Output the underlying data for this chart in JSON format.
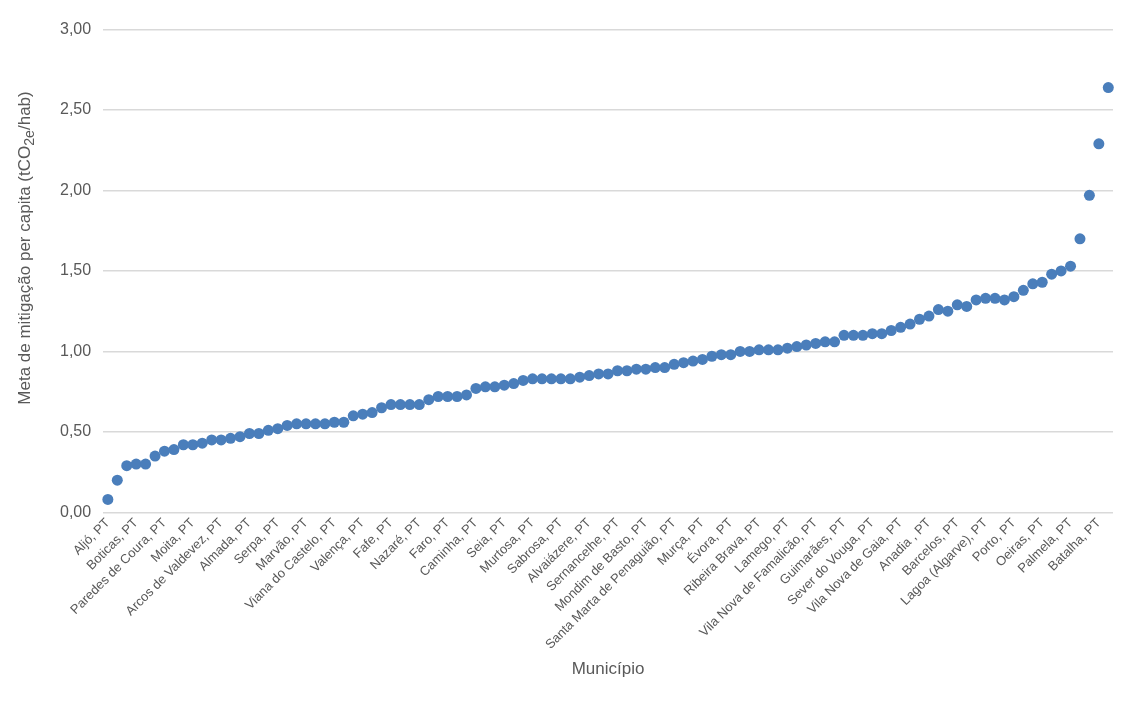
{
  "chart_data": {
    "type": "scatter",
    "xlabel": "Município",
    "ylabel": "Meta de mitigação per capita (tCO$_{2e}$/hab)",
    "categories": [
      "Aljó, PT",
      null,
      null,
      "Boticas, PT",
      null,
      null,
      "Paredes de Coura, PT",
      null,
      null,
      "Moita, PT",
      null,
      null,
      "Arcos de Valdevez, PT",
      null,
      null,
      "Almada, PT",
      null,
      null,
      "Serpa, PT",
      null,
      null,
      "Marvão, PT",
      null,
      null,
      "Viana do Castelo, PT",
      null,
      null,
      "Valença, PT",
      null,
      null,
      "Fafe, PT",
      null,
      null,
      "Nazaré, PT",
      null,
      null,
      "Faro, PT",
      null,
      null,
      "Caminha, PT",
      null,
      null,
      "Seia, PT",
      null,
      null,
      "Murtosa, PT",
      null,
      null,
      "Sabrosa, PT",
      null,
      null,
      "Alvaiázere, PT",
      null,
      null,
      "Sernancelhe, PT",
      null,
      null,
      "Mondim de Basto, PT",
      null,
      null,
      "Santa Marta de Penaguião, PT",
      null,
      null,
      "Murça, PT",
      null,
      null,
      "Évora, PT",
      null,
      null,
      "Ribeira Brava, PT",
      null,
      null,
      "Lamego, PT",
      null,
      null,
      "Vila Nova de Famalicão, PT",
      null,
      null,
      "Guimarães, PT",
      null,
      null,
      "Sever do Vouga, PT",
      null,
      null,
      "Vila Nova de Gaia, PT",
      null,
      null,
      "Anadia , PT",
      null,
      null,
      "Barcelos, PT",
      null,
      null,
      "Lagoa (Algarve), PT",
      null,
      null,
      "Porto, PT",
      null,
      null,
      "Oeiras, PT",
      null,
      null,
      "Palmela, PT",
      null,
      null,
      "Batalha, PT",
      null
    ],
    "series": [
      {
        "color": "#4a7ebb",
        "values": [
          0.08,
          0.2,
          0.29,
          0.3,
          0.3,
          0.35,
          0.38,
          0.39,
          0.42,
          0.42,
          0.43,
          0.45,
          0.45,
          0.46,
          0.47,
          0.49,
          0.49,
          0.51,
          0.52,
          0.54,
          0.55,
          0.55,
          0.55,
          0.55,
          0.56,
          0.56,
          0.6,
          0.61,
          0.62,
          0.65,
          0.67,
          0.67,
          0.67,
          0.67,
          0.7,
          0.72,
          0.72,
          0.72,
          0.73,
          0.77,
          0.78,
          0.78,
          0.79,
          0.8,
          0.82,
          0.83,
          0.83,
          0.83,
          0.83,
          0.83,
          0.84,
          0.85,
          0.86,
          0.86,
          0.88,
          0.88,
          0.89,
          0.89,
          0.9,
          0.9,
          0.92,
          0.93,
          0.94,
          0.95,
          0.97,
          0.98,
          0.98,
          1.0,
          1.0,
          1.01,
          1.01,
          1.01,
          1.02,
          1.03,
          1.04,
          1.05,
          1.06,
          1.06,
          1.1,
          1.1,
          1.1,
          1.11,
          1.11,
          1.13,
          1.15,
          1.17,
          1.2,
          1.22,
          1.26,
          1.25,
          1.29,
          1.28,
          1.32,
          1.33,
          1.33,
          1.32,
          1.34,
          1.38,
          1.42,
          1.43,
          1.48,
          1.5,
          1.53,
          1.7,
          1.97,
          2.29,
          2.64
        ]
      }
    ],
    "ylim": [
      0,
      3
    ],
    "yticks": [
      {
        "value": 0,
        "label": "0,00"
      },
      {
        "value": 0.5,
        "label": "0,50"
      },
      {
        "value": 1,
        "label": "1,00"
      },
      {
        "value": 1.5,
        "label": "1,50"
      },
      {
        "value": 2,
        "label": "2,00"
      },
      {
        "value": 2.5,
        "label": "2,50"
      },
      {
        "value": 3,
        "label": "3,00"
      }
    ],
    "grid": "y",
    "legend": false,
    "marker": "circle"
  }
}
